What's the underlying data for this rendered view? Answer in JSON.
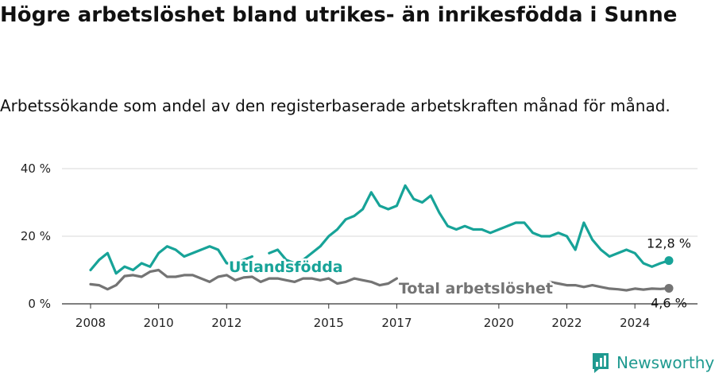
{
  "title": "Högre arbetslöshet bland utrikes- än inrikesfödda i Sunne",
  "subtitle": "Arbetssökande som andel av den registerbaserade arbetskraften månad för månad.",
  "brand": "Newsworthy",
  "colors": {
    "foreign": "#17a398",
    "total": "#747474",
    "grid": "#d9d9d9",
    "brand": "#1f9a90"
  },
  "chart_data": {
    "type": "line",
    "x_start": 2008.0,
    "x_step": 0.25,
    "xlim": [
      2008,
      2025
    ],
    "ylim": [
      0,
      40
    ],
    "yticks": [
      {
        "value": 0,
        "label": "0 %"
      },
      {
        "value": 20,
        "label": "20 %"
      },
      {
        "value": 40,
        "label": "40 %"
      }
    ],
    "xticks": [
      {
        "value": 2008,
        "label": "2008"
      },
      {
        "value": 2010,
        "label": "2010"
      },
      {
        "value": 2012,
        "label": "2012"
      },
      {
        "value": 2015,
        "label": "2015"
      },
      {
        "value": 2017,
        "label": "2017"
      },
      {
        "value": 2020,
        "label": "2020"
      },
      {
        "value": 2022,
        "label": "2022"
      },
      {
        "value": 2024,
        "label": "2024"
      }
    ],
    "grid": true,
    "series": [
      {
        "name": "Utlandsfödda",
        "color": "#17a398",
        "values": [
          10,
          13,
          15,
          9,
          11,
          10,
          12,
          11,
          15,
          17,
          16,
          14,
          15,
          16,
          17,
          16,
          12,
          12,
          13,
          14,
          null,
          15,
          16,
          13,
          12,
          13,
          15,
          17,
          20,
          22,
          25,
          26,
          28,
          33,
          29,
          28,
          29,
          35,
          31,
          30,
          32,
          27,
          23,
          22,
          23,
          22,
          22,
          21,
          22,
          23,
          24,
          24,
          21,
          20,
          20,
          21,
          20,
          16,
          24,
          19,
          16,
          14,
          15,
          16,
          15,
          12,
          11,
          12,
          12.8
        ],
        "end_label": "12,8 %"
      },
      {
        "name": "Total arbetslöshet",
        "color": "#747474",
        "values": [
          5.8,
          5.5,
          4.3,
          5.5,
          8.2,
          8.5,
          8.0,
          9.5,
          10.0,
          8.0,
          8.0,
          8.5,
          8.5,
          7.5,
          6.5,
          8.0,
          8.5,
          7.0,
          7.8,
          8.0,
          6.5,
          7.5,
          7.5,
          7.0,
          6.5,
          7.5,
          7.5,
          7.0,
          7.5,
          6.0,
          6.5,
          7.5,
          7.0,
          6.5,
          5.5,
          6.0,
          7.5,
          null,
          null,
          null,
          null,
          null,
          null,
          null,
          null,
          null,
          null,
          null,
          null,
          null,
          null,
          null,
          null,
          null,
          6.5,
          6.0,
          5.5,
          5.5,
          5.0,
          5.5,
          5.0,
          4.5,
          4.3,
          4.0,
          4.5,
          4.2,
          4.5,
          4.4,
          4.6
        ],
        "end_label": "4,6 %"
      }
    ]
  }
}
